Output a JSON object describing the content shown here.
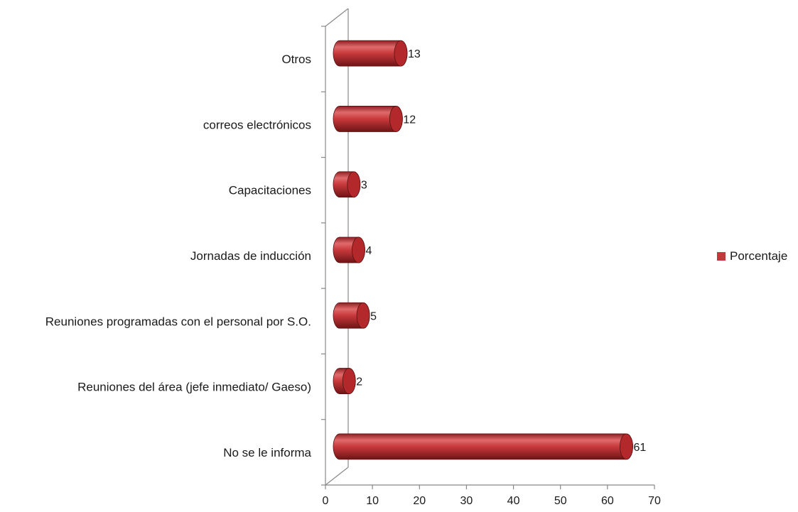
{
  "chart_data": {
    "type": "bar",
    "orientation": "horizontal",
    "style": "3d-cylinder",
    "categories": [
      "No se le informa",
      "Reuniones del área (jefe inmediato/ Gaeso)",
      "Reuniones programadas con el personal por S.O.",
      "Jornadas de inducción",
      "Capacitaciones",
      "correos electrónicos",
      "Otros"
    ],
    "series": [
      {
        "name": "Porcentaje",
        "values": [
          61,
          2,
          5,
          4,
          3,
          12,
          13
        ],
        "color": "#c0393b"
      }
    ],
    "xlim": [
      0,
      70
    ],
    "xticks": [
      "0",
      "10",
      "20",
      "30",
      "40",
      "50",
      "60",
      "70"
    ],
    "legend_position": "right",
    "grid": false
  }
}
